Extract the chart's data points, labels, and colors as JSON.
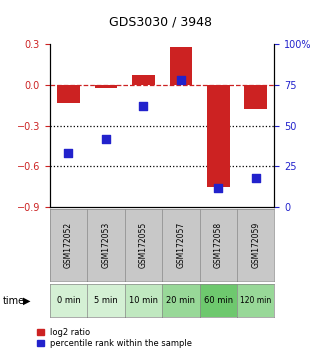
{
  "title": "GDS3030 / 3948",
  "samples": [
    "GSM172052",
    "GSM172053",
    "GSM172055",
    "GSM172057",
    "GSM172058",
    "GSM172059"
  ],
  "time_labels": [
    "0 min",
    "5 min",
    "10 min",
    "20 min",
    "60 min",
    "120 min"
  ],
  "log2_ratio": [
    -0.13,
    -0.02,
    0.07,
    0.28,
    -0.75,
    -0.18
  ],
  "percentile_rank": [
    33,
    42,
    62,
    78,
    12,
    18
  ],
  "ylim_left": [
    -0.9,
    0.3
  ],
  "ylim_right": [
    0,
    100
  ],
  "bar_color": "#cc2222",
  "dot_color": "#2222cc",
  "dashed_line_color": "#cc2222",
  "dotted_line_color": "#000000",
  "grid_lines": [
    -0.3,
    -0.6
  ],
  "right_ticks": [
    0,
    25,
    50,
    75,
    100
  ],
  "left_ticks": [
    -0.9,
    -0.6,
    -0.3,
    0.0,
    0.3
  ],
  "bar_width": 0.6,
  "dot_size": 28,
  "green_colors": [
    "#d4f0d4",
    "#d4f0d4",
    "#c0e8c0",
    "#98d898",
    "#6ec86e",
    "#98d898"
  ],
  "gray_color": "#c8c8c8"
}
